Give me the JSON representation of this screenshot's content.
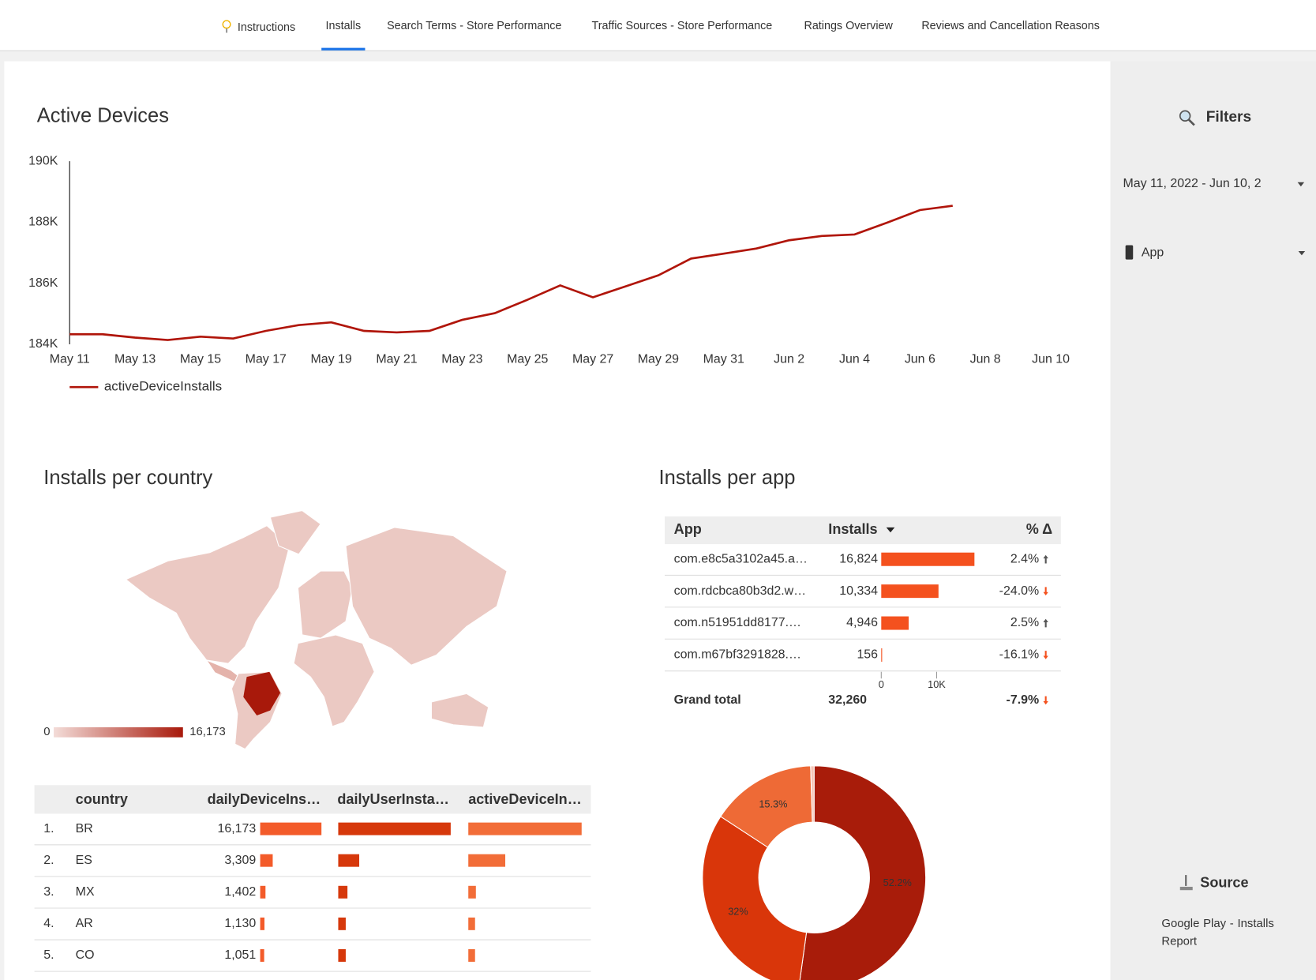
{
  "nav": {
    "tabs": [
      "Instructions",
      "Installs",
      "Search Terms - Store Performance",
      "Traffic Sources - Store Performance",
      "Ratings Overview",
      "Reviews and Cancellation Reasons"
    ],
    "active": 1
  },
  "filters": {
    "title": "Filters",
    "date_range": "May 11, 2022 - Jun 10, 2",
    "app": "App"
  },
  "source": {
    "title": "Source",
    "name": "Google Play - Installs Report"
  },
  "chart_data": [
    {
      "type": "line",
      "title": "Active Devices",
      "categories": [
        "May 11",
        null,
        "May 13",
        null,
        "May 15",
        null,
        "May 17",
        null,
        "May 19",
        null,
        "May 21",
        null,
        "May 23",
        null,
        "May 25",
        null,
        "May 27",
        null,
        "May 29",
        null,
        "May 31",
        null,
        "Jun 2",
        null,
        "Jun 4",
        null,
        "Jun 6",
        null,
        "Jun 8",
        null,
        "Jun 10"
      ],
      "series": [
        {
          "name": "activeDeviceInstalls",
          "color": "#b0150a",
          "values": [
            184330,
            184330,
            184220,
            184140,
            184250,
            184190,
            184440,
            184630,
            184720,
            184440,
            184390,
            184440,
            184800,
            185020,
            185460,
            185930,
            185540,
            185900,
            186260,
            186810,
            186970,
            187140,
            187410,
            187550,
            187600,
            187990,
            188400,
            188540,
            null,
            null,
            null
          ]
        }
      ],
      "ylim": [
        184000,
        190000
      ],
      "yticks": [
        {
          "value": 184000,
          "label": "184K"
        },
        {
          "value": 186000,
          "label": "186K"
        },
        {
          "value": 188000,
          "label": "188K"
        },
        {
          "value": 190000,
          "label": "190K"
        }
      ],
      "grid": false
    },
    {
      "type": "map",
      "title": "Installs per country",
      "colorscale": [
        0,
        {
          "value": 16173,
          "label": "16,173"
        }
      ],
      "colors": [
        "#f3dcd8",
        "#a8190b"
      ]
    },
    {
      "type": "pie",
      "values": [
        52.2,
        32,
        15.3,
        0.5
      ],
      "value_labels": [
        "52.2%",
        "32%",
        "15.3%",
        null
      ],
      "colors": [
        "#a81c0a",
        "#d9360a",
        "#ee6a36",
        "#f6c4b5"
      ]
    }
  ],
  "country_table": {
    "columns": [
      "country",
      "dailyDeviceIns…",
      "dailyUserInsta…",
      "activeDeviceIn…"
    ],
    "colors": [
      "#f35b2a",
      "#d6380b",
      "#f26d38"
    ],
    "rows": [
      {
        "rank": "1.",
        "country": "BR",
        "values": [
          {
            "value": 16173,
            "label": "16,173"
          },
          15000,
          150000
        ]
      },
      {
        "rank": "2.",
        "country": "ES",
        "values": [
          {
            "value": 3309,
            "label": "3,309"
          },
          2800,
          48900
        ]
      },
      {
        "rank": "3.",
        "country": "MX",
        "values": [
          {
            "value": 1402,
            "label": "1,402"
          },
          1230,
          10000
        ]
      },
      {
        "rank": "4.",
        "country": "AR",
        "values": [
          {
            "value": 1130,
            "label": "1,130"
          },
          1000,
          8900
        ]
      },
      {
        "rank": "5.",
        "country": "CO",
        "values": [
          {
            "value": 1051,
            "label": "1,051"
          },
          1000,
          8900
        ]
      }
    ]
  },
  "app_table": {
    "title": "Installs per app",
    "columns": [
      "App",
      "Installs",
      "% Δ"
    ],
    "bar_color": "#f4511e",
    "rows": [
      {
        "app": "com.e8c5a3102a45.a…",
        "installs": {
          "value": 16824,
          "label": "16,824"
        },
        "change": {
          "value": 2.4,
          "label": "2.4%"
        }
      },
      {
        "app": "com.rdcbca80b3d2.w…",
        "installs": {
          "value": 10334,
          "label": "10,334"
        },
        "change": {
          "value": -24.0,
          "label": "-24.0%"
        }
      },
      {
        "app": "com.n51951dd8177.…",
        "installs": {
          "value": 4946,
          "label": "4,946"
        },
        "change": {
          "value": 2.5,
          "label": "2.5%"
        }
      },
      {
        "app": "com.m67bf3291828.…",
        "installs": {
          "value": 156,
          "label": "156"
        },
        "change": {
          "value": -16.1,
          "label": "-16.1%"
        }
      }
    ],
    "xticks": [
      0,
      {
        "value": 10000,
        "label": "10K"
      }
    ],
    "total": {
      "label": "Grand total",
      "installs": {
        "value": 32260,
        "label": "32,260"
      },
      "change": {
        "value": -7.9,
        "label": "-7.9%"
      }
    }
  }
}
